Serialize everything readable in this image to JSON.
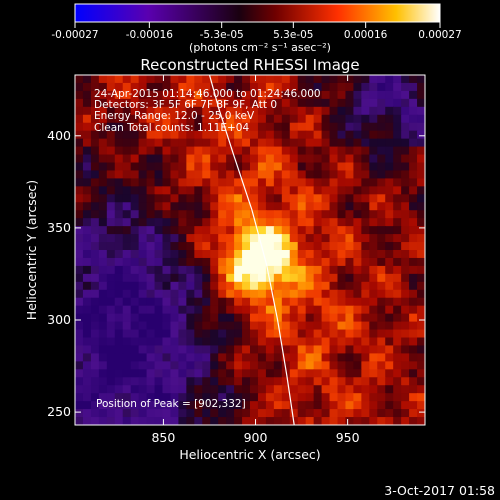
{
  "chart_data": {
    "type": "heatmap",
    "title": "Reconstructed RHESSI Image",
    "xlabel": "Heliocentric X (arcsec)",
    "ylabel": "Heliocentric Y (arcsec)",
    "xlim": [
      802,
      992
    ],
    "ylim": [
      243,
      433
    ],
    "x_ticks": [
      850,
      900,
      950
    ],
    "x_tick_labels": [
      "850",
      "900",
      "950"
    ],
    "y_ticks": [
      250,
      300,
      350,
      400
    ],
    "y_tick_labels": [
      "250",
      "300",
      "350",
      "400"
    ],
    "annotations": [
      "24-Apr-2015 01:14:46.000 to 01:24:46.000",
      "Detectors: 3F 5F 6F 7F 8F 9F, Att 0",
      "Energy Range: 12.0 - 25.0 keV",
      "Clean     Total counts: 1.11E+04"
    ],
    "peak_label": "Position of Peak = [902,332]",
    "peak": [
      902,
      332
    ],
    "colorbar": {
      "range": [
        -0.00027,
        0.00027
      ],
      "tick_values": [
        -0.00027,
        -0.00016,
        -5.3e-05,
        5.3e-05,
        0.00016,
        0.00027
      ],
      "tick_labels": [
        "-0.00027",
        "-0.00016",
        "-5.3e-05",
        "5.3e-05",
        "0.00016",
        "0.00027"
      ],
      "unit_label": "(photons cm⁻² s⁻¹ asec⁻²)",
      "colors": [
        "#0000ff",
        "#6000a0",
        "#000000",
        "#c00000",
        "#ff6000",
        "#ffe000",
        "#ffffff"
      ]
    },
    "limb_curve": [
      [
        875,
        433
      ],
      [
        880,
        415
      ],
      [
        888,
        390
      ],
      [
        898,
        360
      ],
      [
        906,
        330
      ],
      [
        912,
        300
      ],
      [
        917,
        270
      ],
      [
        921,
        243
      ]
    ]
  },
  "footer_date": "3-Oct-2017 01:58"
}
